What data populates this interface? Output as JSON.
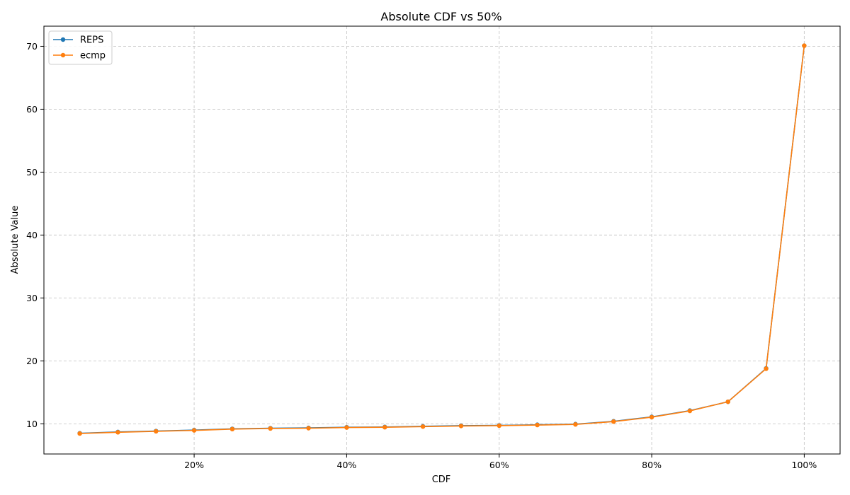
{
  "chart_data": {
    "type": "line",
    "title": "Absolute CDF vs 50%",
    "xlabel": "CDF",
    "ylabel": "Absolute Value",
    "x": [
      5,
      10,
      15,
      20,
      25,
      30,
      35,
      40,
      45,
      50,
      55,
      60,
      65,
      70,
      75,
      80,
      85,
      90,
      95,
      100
    ],
    "xlim": [
      0.3,
      104.7
    ],
    "ylim": [
      5.2,
      73.2
    ],
    "x_ticks": [
      20,
      40,
      60,
      80,
      100
    ],
    "x_tick_labels": [
      "20%",
      "40%",
      "60%",
      "80%",
      "100%"
    ],
    "y_ticks": [
      10,
      20,
      30,
      40,
      50,
      60,
      70
    ],
    "y_tick_labels": [
      "10",
      "20",
      "30",
      "40",
      "50",
      "60",
      "70"
    ],
    "grid": true,
    "legend_position": "top-left",
    "series": [
      {
        "name": "REPS",
        "color": "#1f77b4",
        "values": [
          8.5,
          8.7,
          8.85,
          9.0,
          9.2,
          9.3,
          9.35,
          9.45,
          9.5,
          9.6,
          9.7,
          9.75,
          9.85,
          9.95,
          10.4,
          11.1,
          12.1,
          13.5,
          18.8,
          70.1
        ]
      },
      {
        "name": "ecmp",
        "color": "#ff7f0e",
        "values": [
          8.45,
          8.65,
          8.8,
          8.95,
          9.15,
          9.25,
          9.3,
          9.4,
          9.45,
          9.55,
          9.65,
          9.7,
          9.8,
          9.9,
          10.35,
          11.05,
          12.05,
          13.5,
          18.75,
          70.1
        ]
      }
    ]
  }
}
